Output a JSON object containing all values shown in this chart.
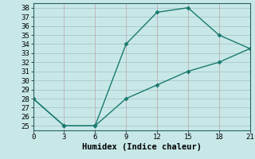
{
  "line1_x": [
    0,
    3,
    6,
    9,
    12,
    15,
    18,
    21
  ],
  "line1_y": [
    28,
    25,
    25,
    34,
    37.5,
    38,
    35,
    33.5
  ],
  "line2_x": [
    0,
    3,
    6,
    9,
    12,
    15,
    18,
    21
  ],
  "line2_y": [
    28,
    25,
    25,
    28,
    29.5,
    31,
    32,
    33.5
  ],
  "line_color": "#1a7a6e",
  "bg_color": "#c8e8e8",
  "grid_color_major": "#a8c8c8",
  "grid_color_minor": "#b8d8d8",
  "xlabel": "Humidex (Indice chaleur)",
  "xlim": [
    0,
    21
  ],
  "ylim": [
    24.5,
    38.5
  ],
  "xticks": [
    0,
    3,
    6,
    9,
    12,
    15,
    18,
    21
  ],
  "yticks": [
    25,
    26,
    27,
    28,
    29,
    30,
    31,
    32,
    33,
    34,
    35,
    36,
    37,
    38
  ],
  "font_family": "monospace",
  "xlabel_fontsize": 7.5,
  "tick_fontsize": 6.5,
  "line_width": 1.0,
  "marker": "D",
  "marker_size": 2.5
}
